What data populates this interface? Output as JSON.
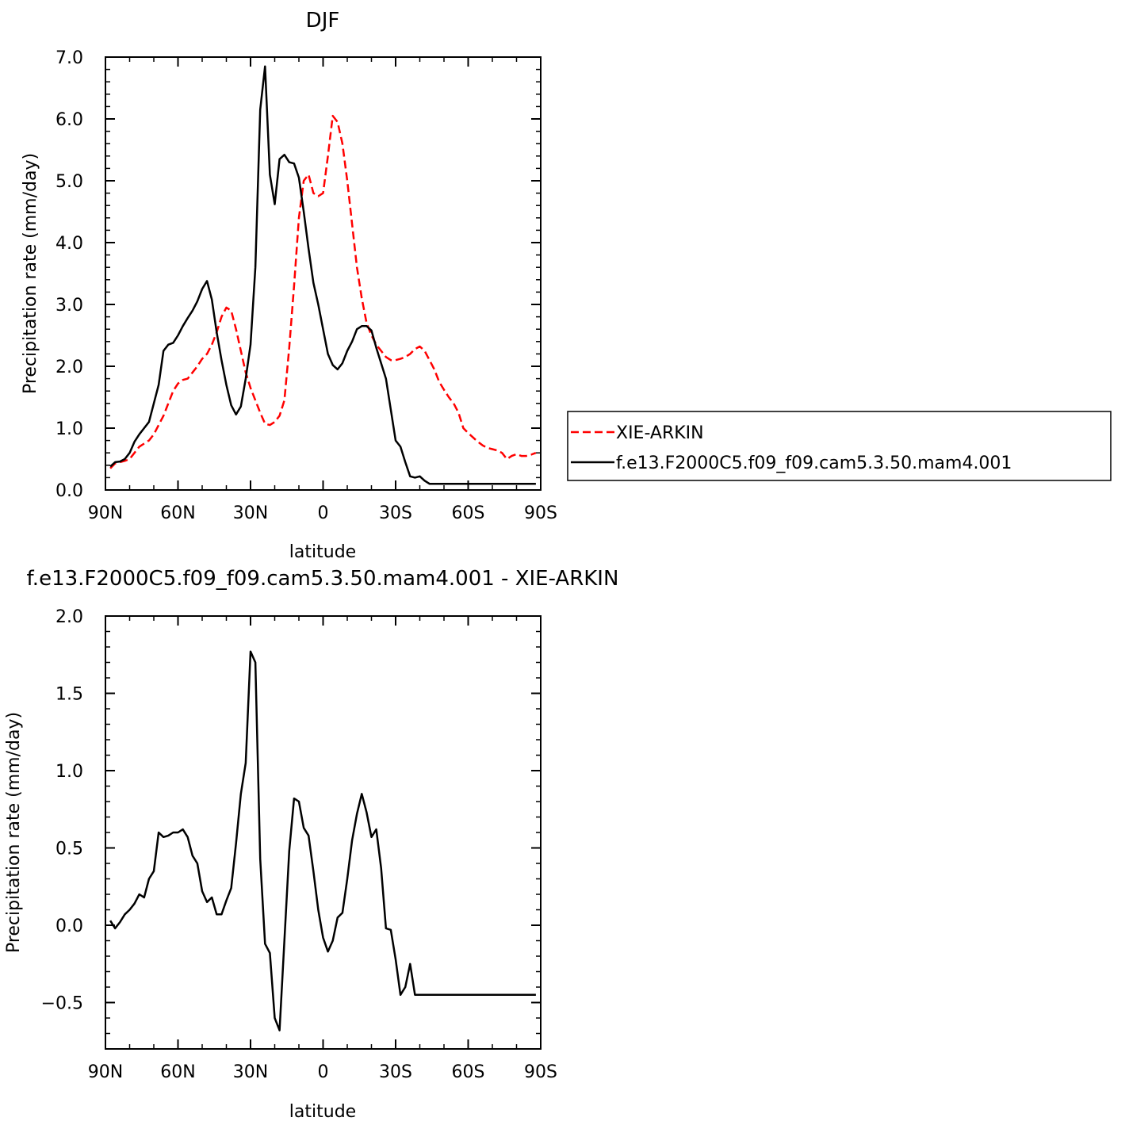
{
  "chart_data": [
    {
      "type": "line",
      "title": "DJF",
      "xlabel": "latitude",
      "ylabel": "Precipitation rate (mm/day)",
      "xlim": [
        -90,
        90
      ],
      "ylim": [
        0,
        7
      ],
      "xticks": [
        -90,
        -60,
        -30,
        0,
        30,
        60,
        90
      ],
      "xtick_labels": [
        "90N",
        "60N",
        "30N",
        "0",
        "30S",
        "60S",
        "90S"
      ],
      "yticks": [
        0,
        1,
        2,
        3,
        4,
        5,
        6,
        7
      ],
      "ytick_labels": [
        "0.0",
        "1.0",
        "2.0",
        "3.0",
        "4.0",
        "5.0",
        "6.0",
        "7.0"
      ],
      "grid": false,
      "legend_position": "right",
      "x": [
        -88,
        -86,
        -84,
        -82,
        -80,
        -78,
        -76,
        -74,
        -72,
        -70,
        -68,
        -66,
        -64,
        -62,
        -60,
        -58,
        -56,
        -54,
        -52,
        -50,
        -48,
        -46,
        -44,
        -42,
        -40,
        -38,
        -36,
        -34,
        -32,
        -30,
        -28,
        -26,
        -24,
        -22,
        -20,
        -18,
        -16,
        -14,
        -12,
        -10,
        -8,
        -6,
        -4,
        -2,
        0,
        2,
        4,
        6,
        8,
        10,
        12,
        14,
        16,
        18,
        20,
        22,
        24,
        26,
        28,
        30,
        32,
        34,
        36,
        38,
        40,
        42,
        44,
        46,
        48,
        50,
        52,
        54,
        56,
        58,
        60,
        62,
        64,
        66,
        68,
        70,
        72,
        74,
        76,
        78,
        80,
        82,
        84,
        86,
        88
      ],
      "series": [
        {
          "name": "XIE-ARKIN",
          "color": "#ff0000",
          "dash": "dashed",
          "values": [
            0.35,
            0.43,
            0.45,
            0.47,
            0.5,
            0.6,
            0.7,
            0.75,
            0.8,
            0.9,
            1.05,
            1.2,
            1.4,
            1.6,
            1.72,
            1.78,
            1.8,
            1.9,
            2.0,
            2.12,
            2.2,
            2.35,
            2.55,
            2.8,
            2.95,
            2.9,
            2.6,
            2.25,
            1.9,
            1.65,
            1.45,
            1.25,
            1.07,
            1.05,
            1.1,
            1.2,
            1.45,
            2.3,
            3.3,
            4.4,
            5.0,
            5.1,
            4.8,
            4.75,
            4.8,
            5.4,
            6.05,
            5.95,
            5.6,
            5.0,
            4.3,
            3.6,
            3.1,
            2.7,
            2.5,
            2.35,
            2.25,
            2.15,
            2.1,
            2.1,
            2.12,
            2.15,
            2.2,
            2.28,
            2.32,
            2.25,
            2.1,
            1.95,
            1.75,
            1.62,
            1.5,
            1.4,
            1.25,
            1.0,
            0.92,
            0.85,
            0.78,
            0.72,
            0.68,
            0.66,
            0.64,
            0.6,
            0.5,
            0.55,
            0.58,
            0.55,
            0.55,
            0.57,
            0.6
          ]
        },
        {
          "name": "f.e13.F2000C5.f09_f09.cam5.3.50.mam4.001",
          "color": "#000000",
          "dash": "solid",
          "values": [
            0.38,
            0.45,
            0.46,
            0.5,
            0.6,
            0.78,
            0.9,
            1.0,
            1.1,
            1.4,
            1.7,
            2.25,
            2.35,
            2.38,
            2.5,
            2.65,
            2.78,
            2.9,
            3.05,
            3.25,
            3.38,
            3.08,
            2.55,
            2.1,
            1.7,
            1.37,
            1.22,
            1.35,
            1.8,
            2.35,
            3.6,
            6.15,
            6.85,
            5.1,
            4.62,
            5.35,
            5.42,
            5.3,
            5.28,
            5.05,
            4.5,
            3.9,
            3.35,
            3.0,
            2.6,
            2.2,
            2.02,
            1.95,
            2.05,
            2.25,
            2.4,
            2.6,
            2.65,
            2.65,
            2.58,
            2.3,
            2.05,
            1.8,
            1.3,
            0.8,
            0.7,
            0.45,
            0.22,
            0.2,
            0.22,
            0.15,
            0.1,
            0.1,
            0.1,
            0.1,
            0.1,
            0.1,
            0.1,
            0.1,
            0.1,
            0.1,
            0.1,
            0.1,
            0.1,
            0.1,
            0.1,
            0.1,
            0.1,
            0.1,
            0.1,
            0.1,
            0.1,
            0.1,
            0.1
          ]
        }
      ]
    },
    {
      "type": "line",
      "title": "f.e13.F2000C5.f09_f09.cam5.3.50.mam4.001 - XIE-ARKIN",
      "xlabel": "latitude",
      "ylabel": "Precipitation rate (mm/day)",
      "xlim": [
        -90,
        90
      ],
      "ylim": [
        -0.8,
        2.0
      ],
      "xticks": [
        -90,
        -60,
        -30,
        0,
        30,
        60,
        90
      ],
      "xtick_labels": [
        "90N",
        "60N",
        "30N",
        "0",
        "30S",
        "60S",
        "90S"
      ],
      "yticks": [
        -0.5,
        0,
        0.5,
        1.0,
        1.5,
        2.0
      ],
      "ytick_labels": [
        "−0.5",
        "0.0",
        "0.5",
        "1.0",
        "1.5",
        "2.0"
      ],
      "grid": false,
      "x": [
        -88,
        -86,
        -84,
        -82,
        -80,
        -78,
        -76,
        -74,
        -72,
        -70,
        -68,
        -66,
        -64,
        -62,
        -60,
        -58,
        -56,
        -54,
        -52,
        -50,
        -48,
        -46,
        -44,
        -42,
        -40,
        -38,
        -36,
        -34,
        -32,
        -30,
        -28,
        -26,
        -24,
        -22,
        -20,
        -18,
        -16,
        -14,
        -12,
        -10,
        -8,
        -6,
        -4,
        -2,
        0,
        2,
        4,
        6,
        8,
        10,
        12,
        14,
        16,
        18,
        20,
        22,
        24,
        26,
        28,
        30,
        32,
        34,
        36,
        38,
        40,
        42,
        44,
        46,
        48,
        50,
        52,
        54,
        56,
        58,
        60,
        62,
        64,
        66,
        68,
        70,
        72,
        74,
        76,
        78,
        80,
        82,
        84,
        86,
        88
      ],
      "series": [
        {
          "name": "",
          "color": "#000000",
          "dash": "solid",
          "values": [
            0.03,
            -0.02,
            0.02,
            0.07,
            0.1,
            0.14,
            0.2,
            0.18,
            0.3,
            0.35,
            0.6,
            0.57,
            0.58,
            0.6,
            0.6,
            0.62,
            0.57,
            0.45,
            0.4,
            0.22,
            0.15,
            0.18,
            0.07,
            0.07,
            0.16,
            0.24,
            0.53,
            0.85,
            1.05,
            1.77,
            1.7,
            0.43,
            -0.12,
            -0.18,
            -0.6,
            -0.68,
            -0.1,
            0.48,
            0.82,
            0.8,
            0.63,
            0.58,
            0.35,
            0.1,
            -0.08,
            -0.17,
            -0.1,
            0.05,
            0.08,
            0.3,
            0.55,
            0.72,
            0.85,
            0.73,
            0.57,
            0.62,
            0.37,
            -0.02,
            -0.03,
            -0.22,
            -0.45,
            -0.4,
            -0.25,
            -0.45,
            -0.45,
            -0.45,
            -0.45,
            -0.45,
            -0.45,
            -0.45,
            -0.45,
            -0.45,
            -0.45,
            -0.45,
            -0.45,
            -0.45,
            -0.45,
            -0.45,
            -0.45,
            -0.45,
            -0.45,
            -0.45,
            -0.45,
            -0.45,
            -0.45,
            -0.45,
            -0.45,
            -0.45,
            -0.45
          ]
        }
      ]
    }
  ]
}
